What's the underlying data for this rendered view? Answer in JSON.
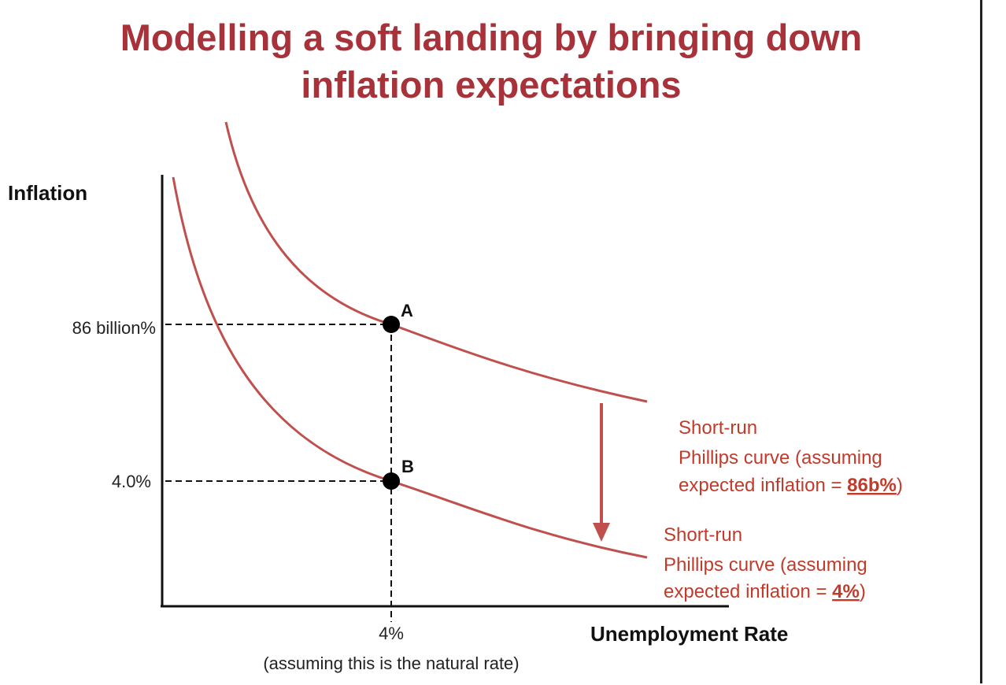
{
  "colors": {
    "title": "#a8323a",
    "curve": "#c0504d",
    "annotation": "#c23a2a",
    "axis": "#111111"
  },
  "chart_data": {
    "type": "line",
    "title_lines": [
      "Modelling a soft landing by bringing down",
      "inflation expectations"
    ],
    "xlabel": "Unemployment Rate",
    "ylabel": "Inflation",
    "x_ticks": [
      {
        "label": "4%",
        "sublabel": "(assuming this is the natural rate)"
      }
    ],
    "y_ticks": [
      {
        "label": "86 billion%"
      },
      {
        "label": "4.0%"
      }
    ],
    "points": [
      {
        "name": "A",
        "x_label": "4%",
        "y_label": "86 billion%"
      },
      {
        "name": "B",
        "x_label": "4%",
        "y_label": "4.0%"
      }
    ],
    "series": [
      {
        "line1": "Short-run",
        "line2": "Phillips curve (assuming",
        "line3_prefix": "expected inflation = ",
        "line3_value": "86b%",
        "line3_suffix": ")"
      },
      {
        "line1": "Short-run",
        "line2": "Phillips curve (assuming",
        "line3_prefix": "expected inflation = ",
        "line3_value": "4%",
        "line3_suffix": ")"
      }
    ],
    "shift_arrow": "down"
  }
}
